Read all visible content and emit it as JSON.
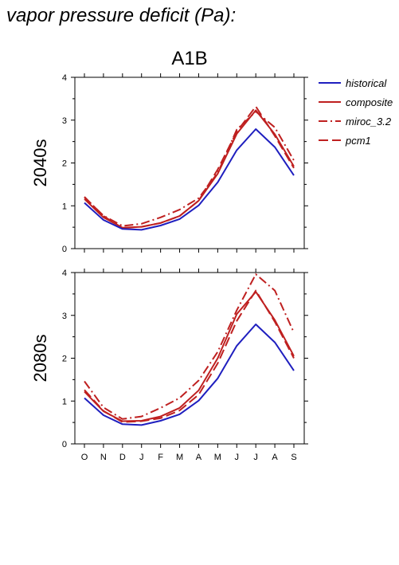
{
  "page_title": "vapor pressure deficit (Pa):",
  "chart_data": {
    "type": "line",
    "title": "A1B",
    "categories": [
      "O",
      "N",
      "D",
      "J",
      "F",
      "M",
      "A",
      "M",
      "J",
      "J",
      "A",
      "S"
    ],
    "ylim": [
      0,
      4
    ],
    "yticks": [
      0,
      1,
      2,
      3,
      4
    ],
    "legend_position": "top-right",
    "legend": [
      {
        "name": "historical",
        "color": "#1f1fbf",
        "dash": "solid"
      },
      {
        "name": "composite",
        "color": "#bf2020",
        "dash": "solid"
      },
      {
        "name": "miroc_3.2",
        "color": "#bf2020",
        "dash": "dashdot"
      },
      {
        "name": "pcm1",
        "color": "#bf2020",
        "dash": "dashed"
      }
    ],
    "panels": [
      {
        "label": "2040s",
        "series": [
          {
            "name": "historical",
            "values": [
              1.07,
              0.67,
              0.46,
              0.44,
              0.54,
              0.69,
              1.01,
              1.55,
              2.3,
              2.79,
              2.37,
              1.71
            ]
          },
          {
            "name": "composite",
            "values": [
              1.16,
              0.73,
              0.49,
              0.51,
              0.6,
              0.76,
              1.12,
              1.75,
              2.68,
              3.23,
              2.67,
              1.92
            ]
          },
          {
            "name": "miroc_3.2",
            "values": [
              1.2,
              0.77,
              0.53,
              0.58,
              0.73,
              0.91,
              1.18,
              1.77,
              2.78,
              3.2,
              2.83,
              2.06
            ]
          },
          {
            "name": "pcm1",
            "values": [
              1.21,
              0.76,
              0.48,
              0.51,
              0.6,
              0.76,
              1.12,
              1.85,
              2.73,
              3.32,
              2.63,
              1.88
            ]
          }
        ]
      },
      {
        "label": "2080s",
        "series": [
          {
            "name": "historical",
            "values": [
              1.07,
              0.67,
              0.46,
              0.44,
              0.54,
              0.69,
              1.01,
              1.53,
              2.29,
              2.79,
              2.37,
              1.71
            ]
          },
          {
            "name": "composite",
            "values": [
              1.22,
              0.76,
              0.53,
              0.54,
              0.64,
              0.84,
              1.25,
              2.0,
              3.03,
              3.55,
              2.89,
              2.05
            ]
          },
          {
            "name": "miroc_3.2",
            "values": [
              1.46,
              0.85,
              0.58,
              0.64,
              0.84,
              1.07,
              1.48,
              2.15,
              3.12,
              3.96,
              3.58,
              2.6
            ]
          },
          {
            "name": "pcm1",
            "values": [
              1.26,
              0.77,
              0.51,
              0.53,
              0.6,
              0.78,
              1.15,
              1.88,
              2.87,
              3.58,
              2.85,
              2.0
            ]
          }
        ]
      }
    ]
  }
}
